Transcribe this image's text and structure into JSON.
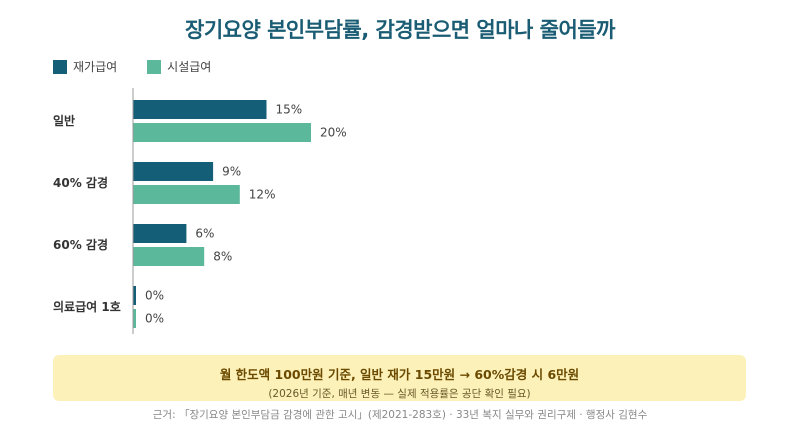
{
  "chart_data": {
    "type": "bar",
    "orientation": "horizontal",
    "title": "장기요양 본인부담률, 감경받으면 얼마나 줄어들까",
    "categories": [
      "일반",
      "40% 감경",
      "60% 감경",
      "의료급여 1호"
    ],
    "series": [
      {
        "name": "재가급여",
        "color": "#155e78",
        "values": [
          15,
          9,
          6,
          0
        ]
      },
      {
        "name": "시설급여",
        "color": "#5cb89b",
        "values": [
          20,
          12,
          8,
          0
        ]
      }
    ],
    "value_suffix": "%",
    "xlim": [
      0,
      35
    ],
    "legend_position": "top-left",
    "grid": false
  },
  "note": {
    "main": "월 한도액 100만원 기준, 일반 재가 15만원 → 60%감경 시 6만원",
    "sub": "(2026년 기준, 매년 변동 — 실제 적용률은 공단 확인 필요)"
  },
  "source": "근거: 「장기요양 본인부담금 감경에 관한 고시」(제2021-283호) · 33년 복지 실무와 권리구제 · 행정사 김현수"
}
